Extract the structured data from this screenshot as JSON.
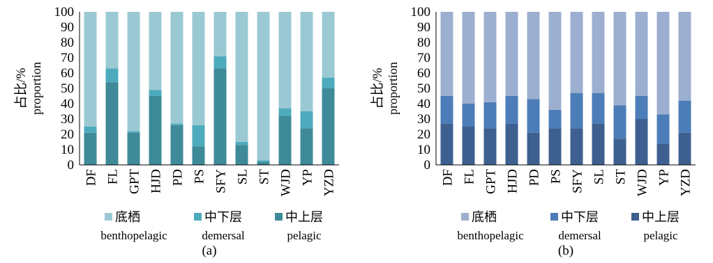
{
  "chart_data": [
    {
      "type": "bar",
      "stacked": true,
      "panel_label": "(a)",
      "ylabel_cn": "占比/%",
      "ylabel_en": "proportion",
      "ylim": [
        0,
        100
      ],
      "yticks": [
        0,
        10,
        20,
        30,
        40,
        50,
        60,
        70,
        80,
        90,
        100
      ],
      "categories": [
        "DF",
        "FL",
        "GPT",
        "HJD",
        "PD",
        "PS",
        "SFY",
        "SL",
        "ST",
        "WJD",
        "YP",
        "YZD"
      ],
      "series": [
        {
          "name_cn": "中上层",
          "name_en": "pelagic",
          "color": "#3f8a98",
          "values": [
            21,
            54,
            21,
            45,
            26,
            12,
            63,
            13,
            2,
            32,
            24,
            50
          ]
        },
        {
          "name_cn": "中下层",
          "name_en": "demersal",
          "color": "#4eabbd",
          "values": [
            4,
            9,
            1,
            4,
            1,
            14,
            8,
            2,
            1,
            5,
            11,
            7
          ]
        },
        {
          "name_cn": "底栖",
          "name_en": "benthopelagic",
          "color": "#9bc9d3",
          "values": [
            75,
            37,
            78,
            51,
            73,
            74,
            29,
            85,
            97,
            63,
            65,
            43
          ]
        }
      ],
      "legend": [
        {
          "series": 2,
          "label_cn": "底栖",
          "label_en": "benthopelagic"
        },
        {
          "series": 1,
          "label_cn": "中下层",
          "label_en": "demersal"
        },
        {
          "series": 0,
          "label_cn": "中上层",
          "label_en": "pelagic"
        }
      ],
      "legend_position": "bottom",
      "grid": false
    },
    {
      "type": "bar",
      "stacked": true,
      "panel_label": "(b)",
      "ylabel_cn": "占比/%",
      "ylabel_en": "proportion",
      "ylim": [
        0,
        100
      ],
      "yticks": [
        0,
        10,
        20,
        30,
        40,
        50,
        60,
        70,
        80,
        90,
        100
      ],
      "categories": [
        "DF",
        "FL",
        "GPT",
        "HJD",
        "PD",
        "PS",
        "SFY",
        "SL",
        "ST",
        "WJD",
        "YP",
        "YZD"
      ],
      "series": [
        {
          "name_cn": "中上层",
          "name_en": "pelagic",
          "color": "#3e6090",
          "values": [
            27,
            25,
            24,
            27,
            21,
            24,
            24,
            27,
            17,
            30,
            14,
            21
          ]
        },
        {
          "name_cn": "中下层",
          "name_en": "demersal",
          "color": "#4c7db8",
          "values": [
            18,
            15,
            17,
            18,
            22,
            12,
            23,
            20,
            22,
            15,
            19,
            21
          ]
        },
        {
          "name_cn": "底栖",
          "name_en": "benthopelagic",
          "color": "#9cafd0",
          "values": [
            55,
            60,
            59,
            55,
            57,
            64,
            53,
            53,
            61,
            55,
            67,
            58
          ]
        }
      ],
      "legend": [
        {
          "series": 2,
          "label_cn": "底栖",
          "label_en": "benthopelagic"
        },
        {
          "series": 1,
          "label_cn": "中下层",
          "label_en": "demersal"
        },
        {
          "series": 0,
          "label_cn": "中上层",
          "label_en": "pelagic"
        }
      ],
      "legend_position": "bottom",
      "grid": false
    }
  ]
}
